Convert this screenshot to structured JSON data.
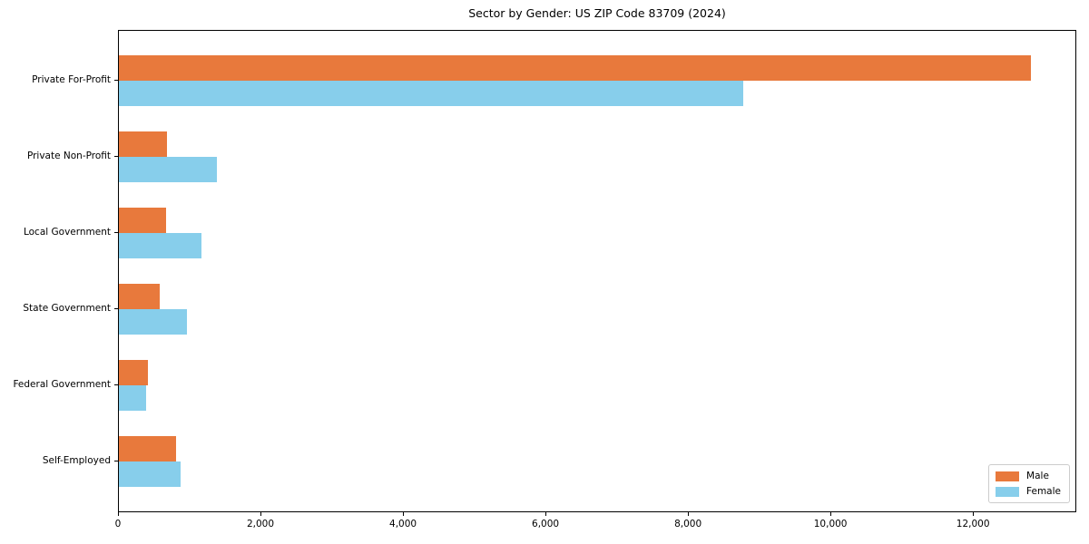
{
  "title": "Sector by Gender: US ZIP Code 83709 (2024)",
  "chart_data": {
    "type": "bar",
    "orientation": "horizontal",
    "title": "Sector by Gender: US ZIP Code 83709 (2024)",
    "xlabel": "",
    "ylabel": "",
    "categories": [
      "Private For-Profit",
      "Private Non-Profit",
      "Local Government",
      "State Government",
      "Federal Government",
      "Self-Employed"
    ],
    "series": [
      {
        "name": "Male",
        "color": "#e8793c",
        "values": [
          12800,
          670,
          660,
          570,
          410,
          800
        ]
      },
      {
        "name": "Female",
        "color": "#87ceeb",
        "values": [
          8760,
          1370,
          1160,
          960,
          380,
          870
        ]
      }
    ],
    "xlim": [
      0,
      13450
    ],
    "x_ticks": [
      0,
      2000,
      4000,
      6000,
      8000,
      10000,
      12000
    ],
    "x_tick_labels": [
      "0",
      "2,000",
      "4,000",
      "6,000",
      "8,000",
      "10,000",
      "12,000"
    ],
    "grid": false,
    "legend_position": "lower right",
    "frame": true
  }
}
